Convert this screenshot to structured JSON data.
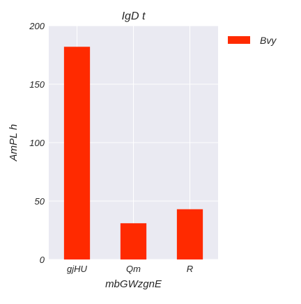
{
  "chart_data": {
    "type": "bar",
    "title": "IgD t",
    "xlabel": "mbGWzgnE",
    "ylabel": "AmPL h",
    "categories": [
      "gjHU",
      "Qm",
      "R"
    ],
    "series": [
      {
        "name": "Bvy",
        "values": [
          182,
          31,
          43
        ],
        "color": "#ff2a00"
      }
    ],
    "ylim": [
      0,
      200
    ],
    "yticks": [
      0,
      50,
      100,
      150,
      200
    ],
    "grid": true,
    "legend_position": "outside-right",
    "plot_background": "#eaeaf2",
    "grid_color": "#ffffff"
  }
}
